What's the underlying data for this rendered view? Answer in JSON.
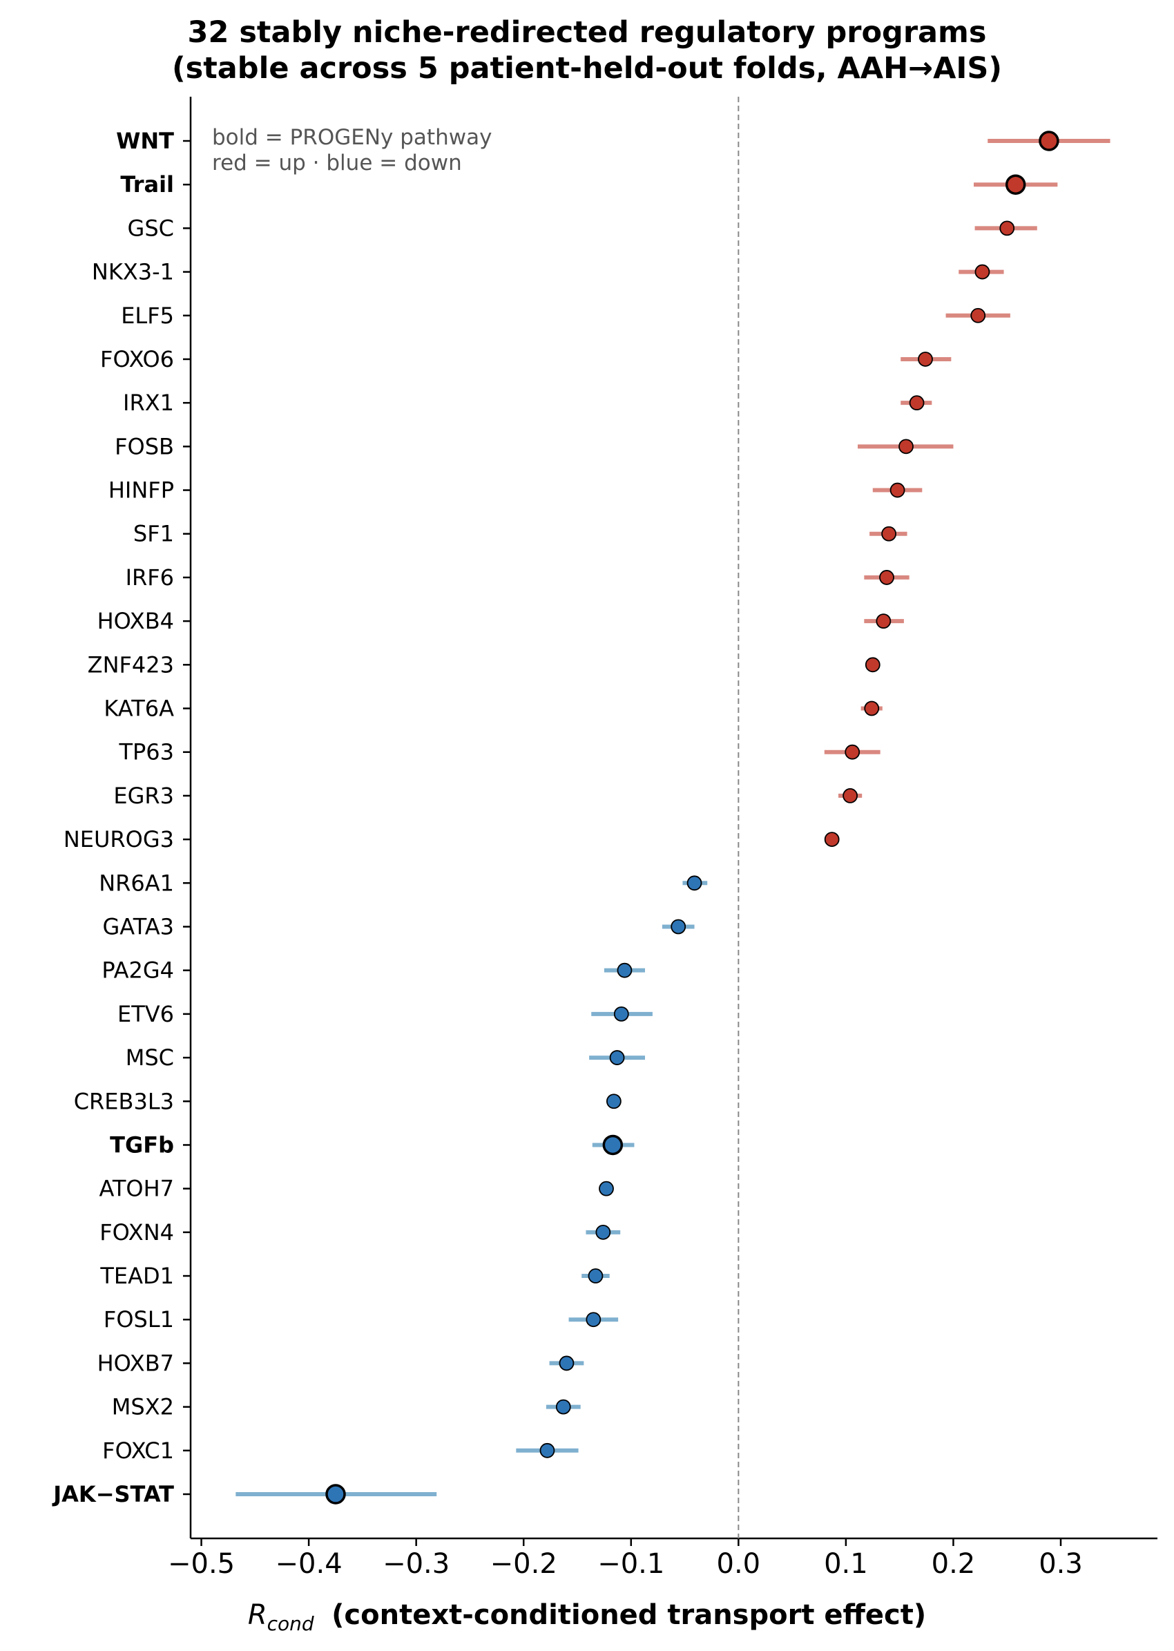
{
  "title_line1": "32 stably niche-redirected regulatory programs",
  "title_line2": "(stable across 5 patient-held-out folds, AAH→AIS)",
  "annotation_line1": "bold = PROGENy pathway",
  "annotation_line2": "red = up · blue = down",
  "xlabel_symbol": "R",
  "xlabel_subscript": "cond",
  "xlabel_text": "(context-conditioned transport effect)",
  "colors": {
    "up": "#c0392b",
    "up_bar": "#d98880",
    "down": "#2e75b6",
    "down_bar": "#7fb0cf",
    "zero_line": "#888888"
  },
  "chart_data": {
    "type": "scatter",
    "orientation": "horizontal",
    "title": "32 stably niche-redirected regulatory programs (stable across 5 patient-held-out folds, AAH→AIS)",
    "xlabel": "R_cond (context-conditioned transport effect)",
    "ylabel": "",
    "xlim": [
      -0.51,
      0.39
    ],
    "xticks": [
      -0.5,
      -0.4,
      -0.3,
      -0.2,
      -0.1,
      0.0,
      0.1,
      0.2,
      0.3
    ],
    "xtick_labels": [
      "−0.5",
      "−0.4",
      "−0.3",
      "−0.2",
      "−0.1",
      "0.0",
      "0.1",
      "0.2",
      "0.3"
    ],
    "reference_line": 0,
    "grid": false,
    "programs": [
      {
        "label": "WNT",
        "value": 0.289,
        "low": 0.232,
        "high": 0.346,
        "direction": "up",
        "pathway": true
      },
      {
        "label": "Trail",
        "value": 0.258,
        "low": 0.219,
        "high": 0.297,
        "direction": "up",
        "pathway": true
      },
      {
        "label": "GSC",
        "value": 0.25,
        "low": 0.22,
        "high": 0.278,
        "direction": "up",
        "pathway": false
      },
      {
        "label": "NKX3-1",
        "value": 0.227,
        "low": 0.205,
        "high": 0.247,
        "direction": "up",
        "pathway": false
      },
      {
        "label": "ELF5",
        "value": 0.223,
        "low": 0.193,
        "high": 0.253,
        "direction": "up",
        "pathway": false
      },
      {
        "label": "FOXO6",
        "value": 0.174,
        "low": 0.151,
        "high": 0.198,
        "direction": "up",
        "pathway": false
      },
      {
        "label": "IRX1",
        "value": 0.166,
        "low": 0.151,
        "high": 0.18,
        "direction": "up",
        "pathway": false
      },
      {
        "label": "FOSB",
        "value": 0.156,
        "low": 0.111,
        "high": 0.2,
        "direction": "up",
        "pathway": false
      },
      {
        "label": "HINFP",
        "value": 0.148,
        "low": 0.125,
        "high": 0.171,
        "direction": "up",
        "pathway": false
      },
      {
        "label": "SF1",
        "value": 0.14,
        "low": 0.122,
        "high": 0.157,
        "direction": "up",
        "pathway": false
      },
      {
        "label": "IRF6",
        "value": 0.138,
        "low": 0.117,
        "high": 0.159,
        "direction": "up",
        "pathway": false
      },
      {
        "label": "HOXB4",
        "value": 0.135,
        "low": 0.117,
        "high": 0.154,
        "direction": "up",
        "pathway": false
      },
      {
        "label": "ZNF423",
        "value": 0.125,
        "low": 0.119,
        "high": 0.131,
        "direction": "up",
        "pathway": false
      },
      {
        "label": "KAT6A",
        "value": 0.124,
        "low": 0.114,
        "high": 0.134,
        "direction": "up",
        "pathway": false
      },
      {
        "label": "TP63",
        "value": 0.106,
        "low": 0.08,
        "high": 0.132,
        "direction": "up",
        "pathway": false
      },
      {
        "label": "EGR3",
        "value": 0.104,
        "low": 0.093,
        "high": 0.115,
        "direction": "up",
        "pathway": false
      },
      {
        "label": "NEUROG3",
        "value": 0.087,
        "low": 0.083,
        "high": 0.091,
        "direction": "up",
        "pathway": false
      },
      {
        "label": "NR6A1",
        "value": -0.041,
        "low": -0.052,
        "high": -0.029,
        "direction": "down",
        "pathway": false
      },
      {
        "label": "GATA3",
        "value": -0.056,
        "low": -0.071,
        "high": -0.041,
        "direction": "down",
        "pathway": false
      },
      {
        "label": "PA2G4",
        "value": -0.106,
        "low": -0.125,
        "high": -0.087,
        "direction": "down",
        "pathway": false
      },
      {
        "label": "ETV6",
        "value": -0.109,
        "low": -0.137,
        "high": -0.08,
        "direction": "down",
        "pathway": false
      },
      {
        "label": "MSC",
        "value": -0.113,
        "low": -0.139,
        "high": -0.087,
        "direction": "down",
        "pathway": false
      },
      {
        "label": "CREB3L3",
        "value": -0.116,
        "low": -0.121,
        "high": -0.111,
        "direction": "down",
        "pathway": false
      },
      {
        "label": "TGFb",
        "value": -0.117,
        "low": -0.136,
        "high": -0.097,
        "direction": "down",
        "pathway": true
      },
      {
        "label": "ATOH7",
        "value": -0.123,
        "low": -0.128,
        "high": -0.118,
        "direction": "down",
        "pathway": false
      },
      {
        "label": "FOXN4",
        "value": -0.126,
        "low": -0.142,
        "high": -0.11,
        "direction": "down",
        "pathway": false
      },
      {
        "label": "TEAD1",
        "value": -0.133,
        "low": -0.146,
        "high": -0.12,
        "direction": "down",
        "pathway": false
      },
      {
        "label": "FOSL1",
        "value": -0.135,
        "low": -0.158,
        "high": -0.112,
        "direction": "down",
        "pathway": false
      },
      {
        "label": "HOXB7",
        "value": -0.16,
        "low": -0.176,
        "high": -0.144,
        "direction": "down",
        "pathway": false
      },
      {
        "label": "MSX2",
        "value": -0.163,
        "low": -0.179,
        "high": -0.147,
        "direction": "down",
        "pathway": false
      },
      {
        "label": "FOXC1",
        "value": -0.178,
        "low": -0.207,
        "high": -0.149,
        "direction": "down",
        "pathway": false
      },
      {
        "label": "JAK−STAT",
        "value": -0.375,
        "low": -0.468,
        "high": -0.281,
        "direction": "down",
        "pathway": true
      }
    ]
  }
}
